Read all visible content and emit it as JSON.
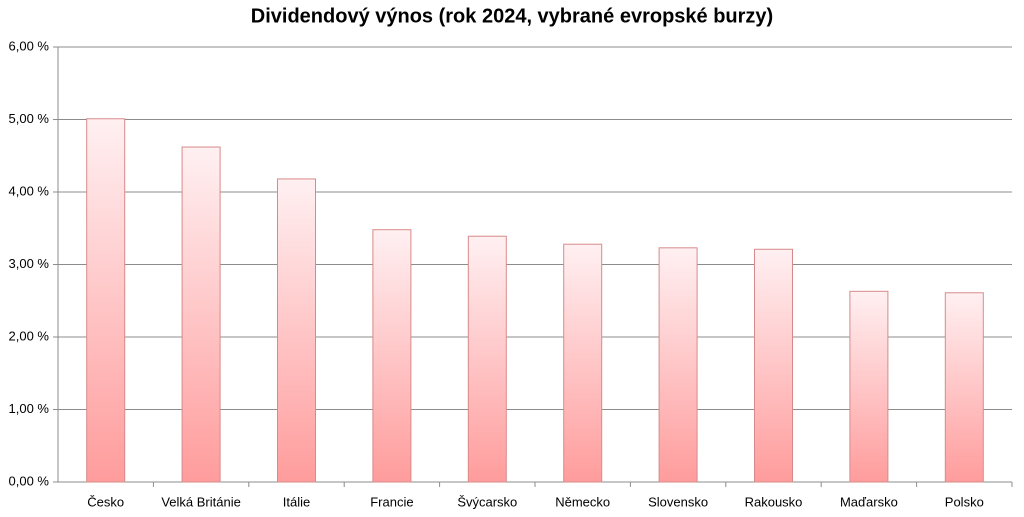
{
  "chart_data": {
    "type": "bar",
    "title": "Dividendový výnos (rok 2024, vybrané evropské burzy)",
    "categories": [
      "Česko",
      "Velká Británie",
      "Itálie",
      "Francie",
      "Švýcarsko",
      "Německo",
      "Slovensko",
      "Rakousko",
      "Maďarsko",
      "Polsko"
    ],
    "values": [
      5.01,
      4.62,
      4.18,
      3.48,
      3.39,
      3.28,
      3.23,
      3.21,
      2.63,
      2.61
    ],
    "color": "#ff9c9c",
    "ylim": [
      0,
      6
    ],
    "yticks": [
      {
        "value": 0,
        "label": "0,00 %"
      },
      {
        "value": 1,
        "label": "1,00 %"
      },
      {
        "value": 2,
        "label": "2,00 %"
      },
      {
        "value": 3,
        "label": "3,00 %"
      },
      {
        "value": 4,
        "label": "4,00 %"
      },
      {
        "value": 5,
        "label": "5,00 %"
      },
      {
        "value": 6,
        "label": "6,00 %"
      }
    ],
    "grid": true
  }
}
